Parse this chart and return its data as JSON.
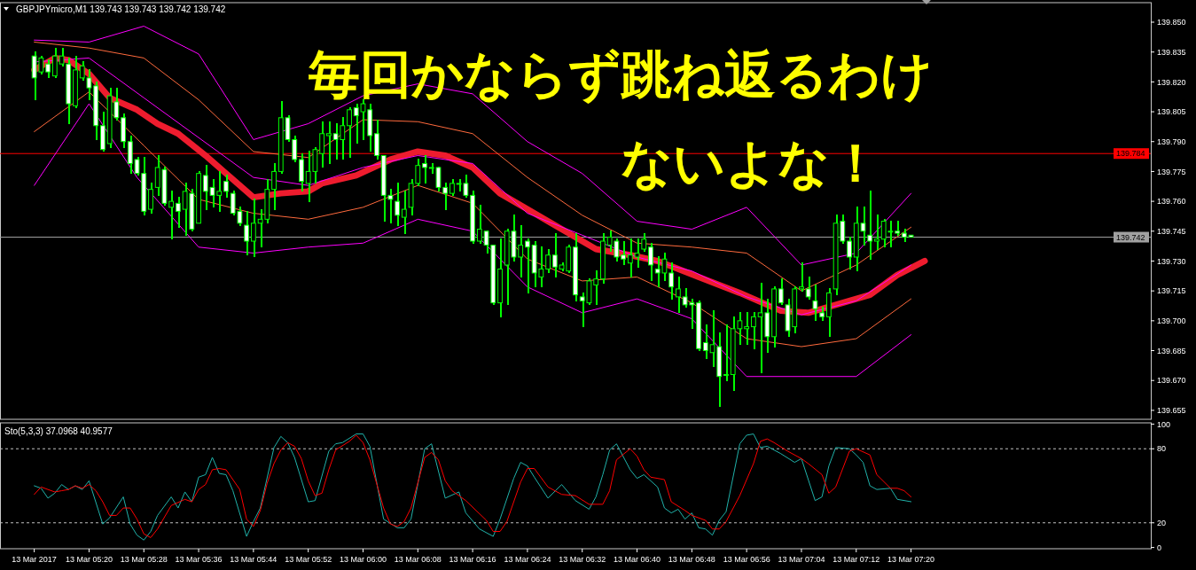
{
  "chart_data": [
    {
      "type": "candlestick",
      "title": "GBPJPYmicro,M1  139.743 139.743 139.742 139.742",
      "tick_labels": "y",
      "xlim": [
        "2017-03-13T05:07",
        "2017-03-13T07:55"
      ],
      "ylim": [
        139.6505,
        139.8598
      ],
      "yticks": [
        {
          "value": 139.85,
          "label": "139.850"
        },
        139.835,
        {
          "value": 139.82,
          "label": "139.820"
        },
        139.805,
        {
          "value": 139.79,
          "label": "139.790"
        },
        139.775,
        {
          "value": 139.76,
          "label": "139.760"
        },
        139.745,
        {
          "value": 139.73,
          "label": "139.730"
        },
        139.715,
        {
          "value": 139.7,
          "label": "139.700"
        },
        139.685,
        {
          "value": 139.67,
          "label": "139.670"
        },
        139.655
      ],
      "x": [
        "2017-03-13T05:12",
        "2017-03-13T05:13",
        "2017-03-13T05:14",
        "2017-03-13T05:15",
        "2017-03-13T05:16",
        "2017-03-13T05:17",
        "2017-03-13T05:18",
        "2017-03-13T05:19",
        "2017-03-13T05:20",
        "2017-03-13T05:21",
        "2017-03-13T05:22",
        "2017-03-13T05:23",
        "2017-03-13T05:24",
        "2017-03-13T05:25",
        "2017-03-13T05:26",
        "2017-03-13T05:27",
        "2017-03-13T05:28",
        "2017-03-13T05:29",
        "2017-03-13T05:30",
        "2017-03-13T05:31",
        "2017-03-13T05:32",
        "2017-03-13T05:33",
        "2017-03-13T05:34",
        "2017-03-13T05:35",
        "2017-03-13T05:36",
        "2017-03-13T05:37",
        "2017-03-13T05:38",
        "2017-03-13T05:39",
        "2017-03-13T05:40",
        "2017-03-13T05:41",
        "2017-03-13T05:42",
        "2017-03-13T05:43",
        "2017-03-13T05:44",
        "2017-03-13T05:45",
        "2017-03-13T05:46",
        "2017-03-13T05:47",
        "2017-03-13T05:48",
        "2017-03-13T05:49",
        "2017-03-13T05:50",
        "2017-03-13T05:51",
        "2017-03-13T05:52",
        "2017-03-13T05:53",
        "2017-03-13T05:54",
        "2017-03-13T05:55",
        "2017-03-13T05:56",
        "2017-03-13T05:57",
        "2017-03-13T05:58",
        "2017-03-13T05:59",
        "2017-03-13T06:00",
        "2017-03-13T06:01",
        "2017-03-13T06:02",
        "2017-03-13T06:03",
        "2017-03-13T06:04",
        "2017-03-13T06:05",
        "2017-03-13T06:06",
        "2017-03-13T06:07",
        "2017-03-13T06:08",
        "2017-03-13T06:09",
        "2017-03-13T06:10",
        "2017-03-13T06:11",
        "2017-03-13T06:12",
        "2017-03-13T06:13",
        "2017-03-13T06:14",
        "2017-03-13T06:15",
        "2017-03-13T06:16",
        "2017-03-13T06:17",
        "2017-03-13T06:18",
        "2017-03-13T06:19",
        "2017-03-13T06:20",
        "2017-03-13T06:21",
        "2017-03-13T06:22",
        "2017-03-13T06:23",
        "2017-03-13T06:24",
        "2017-03-13T06:25",
        "2017-03-13T06:26",
        "2017-03-13T06:27",
        "2017-03-13T06:28",
        "2017-03-13T06:29",
        "2017-03-13T06:30",
        "2017-03-13T06:31",
        "2017-03-13T06:32",
        "2017-03-13T06:33",
        "2017-03-13T06:34",
        "2017-03-13T06:35",
        "2017-03-13T06:36",
        "2017-03-13T06:37",
        "2017-03-13T06:38",
        "2017-03-13T06:39",
        "2017-03-13T06:40",
        "2017-03-13T06:41",
        "2017-03-13T06:42",
        "2017-03-13T06:43",
        "2017-03-13T06:44",
        "2017-03-13T06:45",
        "2017-03-13T06:46",
        "2017-03-13T06:47",
        "2017-03-13T06:48",
        "2017-03-13T06:49",
        "2017-03-13T06:50",
        "2017-03-13T06:51",
        "2017-03-13T06:52",
        "2017-03-13T06:53",
        "2017-03-13T06:54",
        "2017-03-13T06:55",
        "2017-03-13T06:56",
        "2017-03-13T06:57",
        "2017-03-13T06:58",
        "2017-03-13T06:59",
        "2017-03-13T07:00",
        "2017-03-13T07:01",
        "2017-03-13T07:02",
        "2017-03-13T07:03",
        "2017-03-13T07:04",
        "2017-03-13T07:05",
        "2017-03-13T07:06",
        "2017-03-13T07:07",
        "2017-03-13T07:08",
        "2017-03-13T07:09",
        "2017-03-13T07:10",
        "2017-03-13T07:11",
        "2017-03-13T07:12",
        "2017-03-13T07:13",
        "2017-03-13T07:14",
        "2017-03-13T07:15",
        "2017-03-13T07:16",
        "2017-03-13T07:17",
        "2017-03-13T07:18",
        "2017-03-13T07:19",
        "2017-03-13T07:20"
      ],
      "ohlc": [
        [
          139.833,
          139.835,
          139.811,
          139.822
        ],
        [
          139.825,
          139.833,
          139.824,
          139.832
        ],
        [
          139.829,
          139.831,
          139.822,
          139.825
        ],
        [
          139.823,
          139.837,
          139.822,
          139.833
        ],
        [
          139.829,
          139.837,
          139.828,
          139.833
        ],
        [
          139.829,
          139.832,
          139.799,
          139.809
        ],
        [
          139.808,
          139.833,
          139.807,
          139.826
        ],
        [
          139.822,
          139.83,
          139.821,
          139.828
        ],
        [
          139.822,
          139.826,
          139.811,
          139.817
        ],
        [
          139.818,
          139.82,
          139.791,
          139.798
        ],
        [
          139.798,
          139.805,
          139.785,
          139.786
        ],
        [
          139.789,
          139.817,
          139.787,
          139.813
        ],
        [
          139.81,
          139.817,
          139.801,
          139.802
        ],
        [
          139.802,
          139.804,
          139.787,
          139.79
        ],
        [
          139.79,
          139.793,
          139.774,
          139.779
        ],
        [
          139.781,
          139.782,
          139.773,
          139.774
        ],
        [
          139.774,
          139.782,
          139.753,
          139.755
        ],
        [
          139.756,
          139.769,
          139.754,
          139.766
        ],
        [
          139.767,
          139.783,
          139.763,
          139.777
        ],
        [
          139.776,
          139.777,
          139.758,
          139.759
        ],
        [
          139.757,
          139.765,
          139.741,
          139.76
        ],
        [
          139.759,
          139.762,
          139.747,
          139.755
        ],
        [
          139.756,
          139.769,
          139.743,
          139.765
        ],
        [
          139.764,
          139.766,
          139.745,
          139.746
        ],
        [
          139.749,
          139.775,
          139.749,
          139.774
        ],
        [
          139.773,
          139.778,
          139.756,
          139.765
        ],
        [
          139.767,
          139.771,
          139.757,
          139.763
        ],
        [
          139.763,
          139.775,
          139.755,
          139.765
        ],
        [
          139.77,
          139.773,
          139.762,
          139.765
        ],
        [
          139.764,
          139.765,
          139.753,
          139.754
        ],
        [
          139.755,
          139.757,
          139.748,
          139.749
        ],
        [
          139.748,
          139.755,
          139.733,
          139.74
        ],
        [
          139.74,
          139.761,
          139.732,
          139.749
        ],
        [
          139.749,
          139.756,
          139.737,
          139.751
        ],
        [
          139.751,
          139.771,
          139.749,
          139.766
        ],
        [
          139.766,
          139.779,
          139.756,
          139.775
        ],
        [
          139.775,
          139.81,
          139.774,
          139.802
        ],
        [
          139.802,
          139.803,
          139.79,
          139.791
        ],
        [
          139.791,
          139.793,
          139.78,
          139.781
        ],
        [
          139.781,
          139.784,
          139.765,
          139.77
        ],
        [
          139.769,
          139.785,
          139.76,
          139.775
        ],
        [
          139.775,
          139.787,
          139.769,
          139.786
        ],
        [
          139.784,
          139.8,
          139.777,
          139.794
        ],
        [
          139.793,
          139.8,
          139.779,
          139.794
        ],
        [
          139.794,
          139.799,
          139.781,
          139.791
        ],
        [
          139.791,
          139.802,
          139.781,
          139.798
        ],
        [
          139.798,
          139.807,
          139.782,
          139.806
        ],
        [
          139.807,
          139.809,
          139.789,
          139.803
        ],
        [
          139.805,
          139.811,
          139.791,
          139.809
        ],
        [
          139.806,
          139.809,
          139.785,
          139.793
        ],
        [
          139.794,
          139.801,
          139.781,
          139.783
        ],
        [
          139.783,
          139.783,
          139.75,
          139.763
        ],
        [
          139.763,
          139.766,
          139.749,
          139.761
        ],
        [
          139.76,
          139.769,
          139.748,
          139.753
        ],
        [
          139.752,
          139.765,
          139.744,
          139.756
        ],
        [
          139.757,
          139.771,
          139.753,
          139.769
        ],
        [
          139.769,
          139.781,
          139.768,
          139.778
        ],
        [
          139.779,
          139.783,
          139.769,
          139.777
        ],
        [
          139.777,
          139.779,
          139.774,
          139.777
        ],
        [
          139.777,
          139.777,
          139.765,
          139.767
        ],
        [
          139.767,
          139.769,
          139.756,
          139.764
        ],
        [
          139.764,
          139.771,
          139.763,
          139.769
        ],
        [
          139.769,
          139.771,
          139.765,
          139.769
        ],
        [
          139.769,
          139.773,
          139.762,
          139.763
        ],
        [
          139.763,
          139.765,
          139.739,
          139.74
        ],
        [
          139.74,
          139.758,
          139.739,
          139.746
        ],
        [
          139.745,
          139.745,
          139.734,
          139.738
        ],
        [
          139.738,
          139.738,
          139.708,
          139.709
        ],
        [
          139.709,
          139.741,
          139.702,
          139.726
        ],
        [
          139.728,
          139.746,
          139.708,
          139.745
        ],
        [
          139.745,
          139.753,
          139.73,
          139.732
        ],
        [
          139.732,
          139.748,
          139.722,
          139.738
        ],
        [
          139.74,
          139.741,
          139.714,
          139.737
        ],
        [
          139.738,
          139.74,
          139.717,
          139.724
        ],
        [
          139.722,
          139.737,
          139.717,
          139.726
        ],
        [
          139.726,
          139.736,
          139.724,
          139.733
        ],
        [
          139.733,
          139.744,
          139.722,
          139.727
        ],
        [
          139.726,
          139.729,
          139.725,
          139.728
        ],
        [
          139.725,
          139.738,
          139.724,
          139.737
        ],
        [
          139.737,
          139.744,
          139.71,
          139.713
        ],
        [
          139.712,
          139.714,
          139.697,
          139.71
        ],
        [
          139.709,
          139.721,
          139.708,
          139.72
        ],
        [
          139.718,
          139.725,
          139.708,
          139.721
        ],
        [
          139.721,
          139.744,
          139.719,
          139.74
        ],
        [
          139.738,
          139.745,
          139.735,
          139.742
        ],
        [
          139.74,
          139.741,
          139.73,
          139.732
        ],
        [
          139.733,
          139.74,
          139.728,
          139.731
        ],
        [
          139.729,
          139.741,
          139.722,
          139.733
        ],
        [
          139.732,
          139.741,
          139.727,
          139.734
        ],
        [
          139.736,
          139.744,
          139.735,
          139.741
        ],
        [
          139.737,
          139.739,
          139.72,
          139.728
        ],
        [
          139.726,
          139.732,
          139.717,
          139.724
        ],
        [
          139.724,
          139.734,
          139.72,
          139.731
        ],
        [
          139.724,
          139.729,
          139.711,
          139.717
        ],
        [
          139.712,
          139.722,
          139.704,
          139.716
        ],
        [
          139.712,
          139.716,
          139.707,
          139.708
        ],
        [
          139.709,
          139.711,
          139.696,
          139.708
        ],
        [
          139.709,
          139.71,
          139.685,
          139.686
        ],
        [
          139.689,
          139.698,
          139.681,
          139.685
        ],
        [
          139.684,
          139.705,
          139.677,
          139.688
        ],
        [
          139.687,
          139.694,
          139.657,
          139.672
        ],
        [
          139.673,
          139.698,
          139.67,
          139.673
        ],
        [
          139.673,
          139.702,
          139.665,
          139.696
        ],
        [
          139.696,
          139.704,
          139.688,
          139.7
        ],
        [
          139.696,
          139.704,
          139.688,
          139.697
        ],
        [
          139.697,
          139.704,
          139.686,
          139.702
        ],
        [
          139.702,
          139.719,
          139.674,
          139.704
        ],
        [
          139.704,
          139.711,
          139.684,
          139.692
        ],
        [
          139.692,
          139.717,
          139.687,
          139.716
        ],
        [
          139.716,
          139.721,
          139.708,
          139.709
        ],
        [
          139.708,
          139.711,
          139.692,
          139.695
        ],
        [
          139.697,
          139.717,
          139.694,
          139.716
        ],
        [
          139.716,
          139.729,
          139.715,
          139.717
        ],
        [
          139.716,
          139.722,
          139.711,
          139.712
        ],
        [
          139.71,
          139.718,
          139.7,
          139.706
        ],
        [
          139.704,
          139.707,
          139.7,
          139.702
        ],
        [
          139.702,
          139.716,
          139.692,
          139.714
        ],
        [
          139.716,
          139.753,
          139.713,
          139.749
        ],
        [
          139.75,
          139.753,
          139.739,
          139.74
        ],
        [
          139.74,
          139.742,
          139.726,
          139.732
        ],
        [
          139.732,
          139.757,
          139.725,
          139.749
        ],
        [
          139.749,
          139.757,
          139.738,
          139.745
        ],
        [
          139.743,
          139.765,
          139.731,
          139.74
        ],
        [
          139.74,
          139.753,
          139.736,
          139.741
        ],
        [
          139.741,
          139.751,
          139.737,
          139.75
        ],
        [
          139.745,
          139.75,
          139.737,
          139.745
        ],
        [
          139.745,
          139.75,
          139.743,
          139.744
        ],
        [
          139.744,
          139.746,
          139.74,
          139.742
        ],
        [
          139.743,
          139.743,
          139.742,
          139.742
        ]
      ],
      "series": [
        {
          "type": "line",
          "color": "#ee1c2e",
          "x": [
            "2017-03-13T05:12",
            "2017-03-13T05:15",
            "2017-03-13T05:17",
            "2017-03-13T05:20",
            "2017-03-13T05:23",
            "2017-03-13T05:27",
            "2017-03-13T05:30",
            "2017-03-13T05:33",
            "2017-03-13T05:37",
            "2017-03-13T05:41",
            "2017-03-13T05:44",
            "2017-03-13T05:48",
            "2017-03-13T05:52",
            "2017-03-13T05:54",
            "2017-03-13T05:59",
            "2017-03-13T06:04",
            "2017-03-13T06:08",
            "2017-03-13T06:12",
            "2017-03-13T06:16",
            "2017-03-13T06:20",
            "2017-03-13T06:25",
            "2017-03-13T06:30",
            "2017-03-13T06:34",
            "2017-03-13T06:39",
            "2017-03-13T06:43",
            "2017-03-13T06:49",
            "2017-03-13T06:55",
            "2017-03-13T07:01",
            "2017-03-13T07:05",
            "2017-03-13T07:10",
            "2017-03-13T07:14",
            "2017-03-13T07:18",
            "2017-03-13T07:22"
          ],
          "values": [
            139.826,
            139.832,
            139.831,
            139.824,
            139.812,
            139.806,
            139.799,
            139.794,
            139.783,
            139.771,
            139.762,
            139.764,
            139.765,
            139.769,
            139.773,
            139.781,
            139.785,
            139.783,
            139.777,
            139.764,
            139.754,
            139.744,
            139.736,
            139.733,
            139.73,
            139.722,
            139.714,
            139.705,
            139.704,
            139.709,
            139.713,
            139.723,
            139.73
          ]
        },
        {
          "type": "line",
          "color": "#ff00ff",
          "x": [
            "2017-03-13T05:12",
            "2017-03-13T05:20",
            "2017-03-13T05:28",
            "2017-03-13T05:36",
            "2017-03-13T05:44",
            "2017-03-13T05:52",
            "2017-03-13T06:00",
            "2017-03-13T06:08",
            "2017-03-13T06:16",
            "2017-03-13T06:24",
            "2017-03-13T06:32",
            "2017-03-13T06:40",
            "2017-03-13T06:48",
            "2017-03-13T06:56",
            "2017-03-13T07:04",
            "2017-03-13T07:12",
            "2017-03-13T07:20"
          ],
          "values": [
            139.841,
            139.84,
            139.848,
            139.834,
            139.791,
            139.799,
            139.813,
            139.819,
            139.814,
            139.79,
            139.774,
            139.75,
            139.746,
            139.757,
            139.728,
            139.734,
            139.764
          ]
        },
        {
          "type": "line",
          "color": "#ff6a3d",
          "x": [
            "2017-03-13T05:12",
            "2017-03-13T05:20",
            "2017-03-13T05:28",
            "2017-03-13T05:36",
            "2017-03-13T05:44",
            "2017-03-13T05:52",
            "2017-03-13T06:00",
            "2017-03-13T06:08",
            "2017-03-13T06:16",
            "2017-03-13T06:24",
            "2017-03-13T06:32",
            "2017-03-13T06:40",
            "2017-03-13T06:48",
            "2017-03-13T06:56",
            "2017-03-13T07:04",
            "2017-03-13T07:12",
            "2017-03-13T07:20"
          ],
          "values": [
            139.84,
            139.837,
            139.832,
            139.811,
            139.785,
            139.782,
            139.801,
            139.8,
            139.794,
            139.772,
            139.753,
            139.739,
            139.737,
            139.734,
            139.715,
            139.728,
            139.747
          ]
        },
        {
          "type": "line",
          "color": "#ff00ff",
          "x": [
            "2017-03-13T05:12",
            "2017-03-13T05:20",
            "2017-03-13T05:28",
            "2017-03-13T05:36",
            "2017-03-13T05:44",
            "2017-03-13T05:52",
            "2017-03-13T06:00",
            "2017-03-13T06:08",
            "2017-03-13T06:16",
            "2017-03-13T06:24",
            "2017-03-13T06:32",
            "2017-03-13T06:40",
            "2017-03-13T06:48",
            "2017-03-13T06:56",
            "2017-03-13T07:04",
            "2017-03-13T07:12",
            "2017-03-13T07:20"
          ],
          "values": [
            139.83,
            139.832,
            139.812,
            139.792,
            139.772,
            139.768,
            139.777,
            139.783,
            139.779,
            139.754,
            139.743,
            139.732,
            139.725,
            139.712,
            139.703,
            139.71,
            139.728
          ]
        },
        {
          "type": "line",
          "color": "#ff6a3d",
          "x": [
            "2017-03-13T05:12",
            "2017-03-13T05:20",
            "2017-03-13T05:28",
            "2017-03-13T05:36",
            "2017-03-13T05:44",
            "2017-03-13T05:52",
            "2017-03-13T06:00",
            "2017-03-13T06:08",
            "2017-03-13T06:16",
            "2017-03-13T06:24",
            "2017-03-13T06:32",
            "2017-03-13T06:40",
            "2017-03-13T06:48",
            "2017-03-13T06:56",
            "2017-03-13T07:04",
            "2017-03-13T07:12",
            "2017-03-13T07:20"
          ],
          "values": [
            139.795,
            139.815,
            139.788,
            139.761,
            139.754,
            139.751,
            139.757,
            139.768,
            139.759,
            139.731,
            139.72,
            139.722,
            139.709,
            139.691,
            139.687,
            139.691,
            139.711
          ]
        },
        {
          "type": "line",
          "color": "#ff00ff",
          "x": [
            "2017-03-13T05:12",
            "2017-03-13T05:20",
            "2017-03-13T05:27",
            "2017-03-13T05:36",
            "2017-03-13T05:44",
            "2017-03-13T05:52",
            "2017-03-13T06:00",
            "2017-03-13T06:08",
            "2017-03-13T06:16",
            "2017-03-13T06:24",
            "2017-03-13T06:32",
            "2017-03-13T06:40",
            "2017-03-13T06:48",
            "2017-03-13T06:56",
            "2017-03-13T07:04",
            "2017-03-13T07:12",
            "2017-03-13T07:20"
          ],
          "values": [
            139.768,
            139.809,
            139.772,
            139.737,
            139.734,
            139.737,
            139.739,
            139.751,
            139.745,
            139.717,
            139.704,
            139.711,
            139.701,
            139.672,
            139.672,
            139.672,
            139.693
          ]
        }
      ],
      "ref_lines": [
        {
          "axis": "y",
          "value": 139.784,
          "label": "139.784",
          "color": "#ff0000"
        },
        {
          "axis": "y",
          "value": 139.742,
          "label": "139.742",
          "color": "#a0a0a0"
        }
      ],
      "annotations": [
        "毎回かならず跳ね返るわけ",
        "ないよな！"
      ]
    },
    {
      "type": "line",
      "title": "Sto(5,3,3) 37.0968 40.9577",
      "xlim": [
        "2017-03-13T05:07",
        "2017-03-13T07:55"
      ],
      "xticks": [
        {
          "value": "2017-03-13T05:12",
          "label": "13 Mar 2017"
        },
        {
          "value": "2017-03-13T05:20",
          "label": "13 Mar 05:20"
        },
        {
          "value": "2017-03-13T05:28",
          "label": "13 Mar 05:28"
        },
        {
          "value": "2017-03-13T05:36",
          "label": "13 Mar 05:36"
        },
        {
          "value": "2017-03-13T05:44",
          "label": "13 Mar 05:44"
        },
        {
          "value": "2017-03-13T05:52",
          "label": "13 Mar 05:52"
        },
        {
          "value": "2017-03-13T06:00",
          "label": "13 Mar 06:00"
        },
        {
          "value": "2017-03-13T06:08",
          "label": "13 Mar 06:08"
        },
        {
          "value": "2017-03-13T06:16",
          "label": "13 Mar 06:16"
        },
        {
          "value": "2017-03-13T06:24",
          "label": "13 Mar 06:24"
        },
        {
          "value": "2017-03-13T06:32",
          "label": "13 Mar 06:32"
        },
        {
          "value": "2017-03-13T06:40",
          "label": "13 Mar 06:40"
        },
        {
          "value": "2017-03-13T06:48",
          "label": "13 Mar 06:48"
        },
        {
          "value": "2017-03-13T06:56",
          "label": "13 Mar 06:56"
        },
        {
          "value": "2017-03-13T07:04",
          "label": "13 Mar 07:04"
        },
        {
          "value": "2017-03-13T07:12",
          "label": "13 Mar 07:12"
        },
        {
          "value": "2017-03-13T07:20",
          "label": "13 Mar 07:20"
        }
      ],
      "ylim": [
        -1,
        101
      ],
      "yticks": [
        100,
        80,
        20,
        0
      ],
      "ref_lines": [
        {
          "axis": "y",
          "value": 80,
          "color": "#c0c0c0",
          "line_style": "dashed"
        },
        {
          "axis": "y",
          "value": 20,
          "color": "#c0c0c0",
          "line_style": "dashed"
        }
      ],
      "series": [
        {
          "type": "line",
          "color": "#20b2aa",
          "x": [
            "2017-03-13T05:12",
            "2017-03-13T05:13",
            "2017-03-13T05:14",
            "2017-03-13T05:15",
            "2017-03-13T05:16",
            "2017-03-13T05:17",
            "2017-03-13T05:18",
            "2017-03-13T05:19",
            "2017-03-13T05:20",
            "2017-03-13T05:22",
            "2017-03-13T05:23",
            "2017-03-13T05:25",
            "2017-03-13T05:26",
            "2017-03-13T05:27",
            "2017-03-13T05:28",
            "2017-03-13T05:29",
            "2017-03-13T05:30",
            "2017-03-13T05:32",
            "2017-03-13T05:33",
            "2017-03-13T05:34",
            "2017-03-13T05:35",
            "2017-03-13T05:36",
            "2017-03-13T05:37",
            "2017-03-13T05:38",
            "2017-03-13T05:39",
            "2017-03-13T05:40",
            "2017-03-13T05:41",
            "2017-03-13T05:43",
            "2017-03-13T05:44",
            "2017-03-13T05:45",
            "2017-03-13T05:47",
            "2017-03-13T05:48",
            "2017-03-13T05:49",
            "2017-03-13T05:50",
            "2017-03-13T05:52",
            "2017-03-13T05:53",
            "2017-03-13T05:55",
            "2017-03-13T05:56",
            "2017-03-13T05:57",
            "2017-03-13T05:59",
            "2017-03-13T06:00",
            "2017-03-13T06:01",
            "2017-03-13T06:03",
            "2017-03-13T06:05",
            "2017-03-13T06:06",
            "2017-03-13T06:07",
            "2017-03-13T06:09",
            "2017-03-13T06:10",
            "2017-03-13T06:12",
            "2017-03-13T06:14",
            "2017-03-13T06:15",
            "2017-03-13T06:17",
            "2017-03-13T06:19",
            "2017-03-13T06:20",
            "2017-03-13T06:22",
            "2017-03-13T06:23",
            "2017-03-13T06:24",
            "2017-03-13T06:25",
            "2017-03-13T06:27",
            "2017-03-13T06:29",
            "2017-03-13T06:31",
            "2017-03-13T06:33",
            "2017-03-13T06:34",
            "2017-03-13T06:35",
            "2017-03-13T06:36",
            "2017-03-13T06:37",
            "2017-03-13T06:39",
            "2017-03-13T06:40",
            "2017-03-13T06:41",
            "2017-03-13T06:43",
            "2017-03-13T06:44",
            "2017-03-13T06:45",
            "2017-03-13T06:46",
            "2017-03-13T06:47",
            "2017-03-13T06:48",
            "2017-03-13T06:49",
            "2017-03-13T06:50",
            "2017-03-13T06:51",
            "2017-03-13T06:52",
            "2017-03-13T06:53",
            "2017-03-13T06:55",
            "2017-03-13T06:56",
            "2017-03-13T06:57",
            "2017-03-13T06:58",
            "2017-03-13T06:59",
            "2017-03-13T07:01",
            "2017-03-13T07:03",
            "2017-03-13T07:04",
            "2017-03-13T07:06",
            "2017-03-13T07:07",
            "2017-03-13T07:08",
            "2017-03-13T07:09",
            "2017-03-13T07:11",
            "2017-03-13T07:12",
            "2017-03-13T07:13",
            "2017-03-13T07:14",
            "2017-03-13T07:15",
            "2017-03-13T07:17",
            "2017-03-13T07:18",
            "2017-03-13T07:20"
          ],
          "values": [
            50,
            48,
            40,
            44,
            51,
            47,
            50,
            47,
            54,
            19,
            24,
            41,
            19,
            10,
            6,
            13,
            26,
            41,
            32,
            45,
            37,
            57,
            59,
            73,
            60,
            59,
            46,
            9,
            21,
            32,
            81,
            90,
            85,
            73,
            37,
            38,
            78,
            84,
            85,
            92,
            92,
            82,
            23,
            16,
            16,
            23,
            80,
            84,
            40,
            45,
            28,
            15,
            9,
            23,
            56,
            69,
            66,
            57,
            40,
            51,
            38,
            31,
            41,
            59,
            79,
            84,
            63,
            56,
            59,
            49,
            32,
            28,
            31,
            23,
            28,
            16,
            15,
            10,
            22,
            29,
            84,
            91,
            92,
            81,
            82,
            76,
            69,
            72,
            38,
            41,
            66,
            81,
            80,
            75,
            69,
            50,
            47,
            48,
            39,
            37.0968
          ]
        },
        {
          "type": "line",
          "color": "#ff0000",
          "x": [
            "2017-03-13T05:12",
            "2017-03-13T05:13",
            "2017-03-13T05:15",
            "2017-03-13T05:16",
            "2017-03-13T05:17",
            "2017-03-13T05:18",
            "2017-03-13T05:19",
            "2017-03-13T05:20",
            "2017-03-13T05:21",
            "2017-03-13T05:22",
            "2017-03-13T05:23",
            "2017-03-13T05:24",
            "2017-03-13T05:25",
            "2017-03-13T05:26",
            "2017-03-13T05:27",
            "2017-03-13T05:28",
            "2017-03-13T05:29",
            "2017-03-13T05:30",
            "2017-03-13T05:32",
            "2017-03-13T05:34",
            "2017-03-13T05:35",
            "2017-03-13T05:36",
            "2017-03-13T05:37",
            "2017-03-13T05:38",
            "2017-03-13T05:39",
            "2017-03-13T05:40",
            "2017-03-13T05:42",
            "2017-03-13T05:43",
            "2017-03-13T05:44",
            "2017-03-13T05:45",
            "2017-03-13T05:46",
            "2017-03-13T05:47",
            "2017-03-13T05:48",
            "2017-03-13T05:49",
            "2017-03-13T05:50",
            "2017-03-13T05:51",
            "2017-03-13T05:52",
            "2017-03-13T05:53",
            "2017-03-13T05:54",
            "2017-03-13T05:55",
            "2017-03-13T05:56",
            "2017-03-13T05:58",
            "2017-03-13T05:59",
            "2017-03-13T06:00",
            "2017-03-13T06:01",
            "2017-03-13T06:03",
            "2017-03-13T06:04",
            "2017-03-13T06:05",
            "2017-03-13T06:06",
            "2017-03-13T06:07",
            "2017-03-13T06:09",
            "2017-03-13T06:10",
            "2017-03-13T06:11",
            "2017-03-13T06:12",
            "2017-03-13T06:13",
            "2017-03-13T06:15",
            "2017-03-13T06:18",
            "2017-03-13T06:19",
            "2017-03-13T06:20",
            "2017-03-13T06:21",
            "2017-03-13T06:23",
            "2017-03-13T06:24",
            "2017-03-13T06:25",
            "2017-03-13T06:27",
            "2017-03-13T06:29",
            "2017-03-13T06:31",
            "2017-03-13T06:33",
            "2017-03-13T06:35",
            "2017-03-13T06:36",
            "2017-03-13T06:37",
            "2017-03-13T06:39",
            "2017-03-13T06:40",
            "2017-03-13T06:41",
            "2017-03-13T06:42",
            "2017-03-13T06:44",
            "2017-03-13T06:45",
            "2017-03-13T06:47",
            "2017-03-13T06:48",
            "2017-03-13T06:50",
            "2017-03-13T06:51",
            "2017-03-13T06:52",
            "2017-03-13T06:53",
            "2017-03-13T06:55",
            "2017-03-13T06:57",
            "2017-03-13T06:58",
            "2017-03-13T06:59",
            "2017-03-13T07:00",
            "2017-03-13T07:02",
            "2017-03-13T07:04",
            "2017-03-13T07:05",
            "2017-03-13T07:07",
            "2017-03-13T07:08",
            "2017-03-13T07:09",
            "2017-03-13T07:11",
            "2017-03-13T07:12",
            "2017-03-13T07:14",
            "2017-03-13T07:15",
            "2017-03-13T07:17",
            "2017-03-13T07:18",
            "2017-03-13T07:19",
            "2017-03-13T07:20"
          ],
          "values": [
            43,
            49,
            45,
            46,
            47,
            50,
            48,
            51,
            46,
            37,
            26,
            26,
            32,
            32,
            23,
            11,
            8,
            15,
            34,
            39,
            37,
            47,
            51,
            63,
            64,
            63,
            47,
            23,
            17,
            30,
            52,
            68,
            79,
            85,
            82,
            72,
            54,
            42,
            44,
            63,
            79,
            86,
            91,
            85,
            71,
            32,
            19,
            17,
            21,
            32,
            73,
            77,
            71,
            54,
            46,
            38,
            22,
            13,
            13,
            21,
            53,
            64,
            64,
            49,
            43,
            42,
            35,
            35,
            46,
            71,
            80,
            74,
            63,
            57,
            55,
            37,
            30,
            26,
            22,
            15,
            15,
            21,
            42,
            68,
            86,
            88,
            85,
            78,
            72,
            68,
            59,
            44,
            49,
            78,
            80,
            75,
            59,
            48,
            48,
            46,
            40.9577
          ]
        }
      ]
    }
  ]
}
